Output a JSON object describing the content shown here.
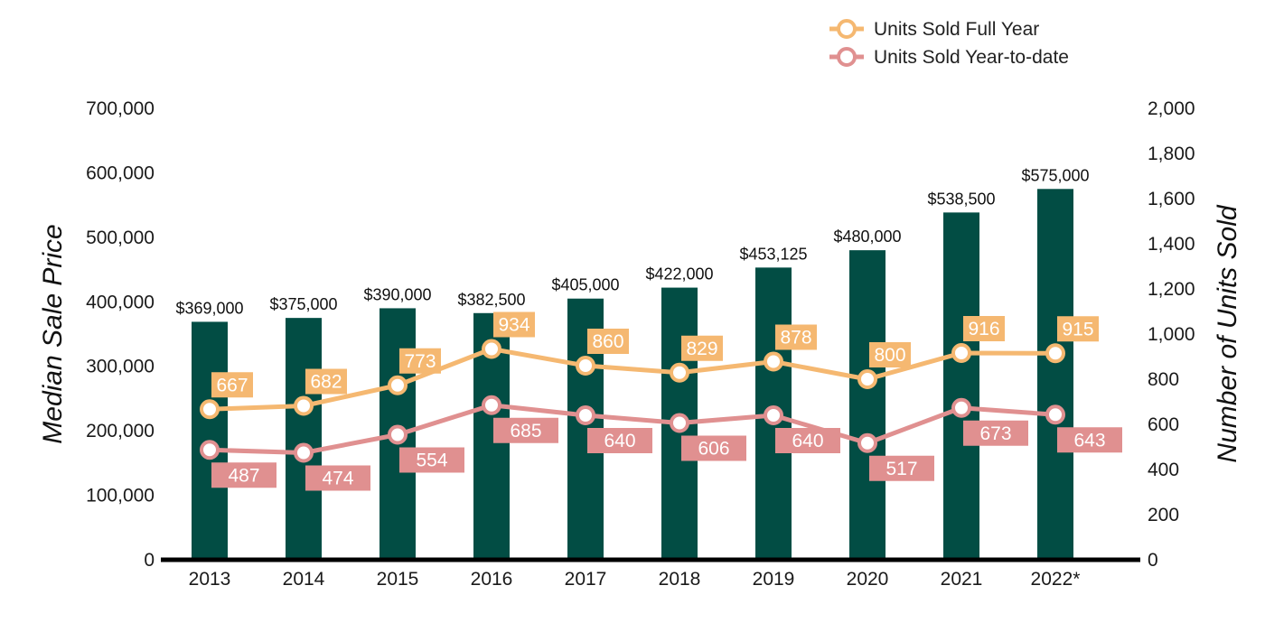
{
  "chart_data": {
    "type": "bar",
    "categories": [
      "2013",
      "2014",
      "2015",
      "2016",
      "2017",
      "2018",
      "2019",
      "2020",
      "2021",
      "2022*"
    ],
    "y_left": {
      "label": "Median Sale Price",
      "range": [
        0,
        700000
      ],
      "ticks": [
        "0",
        "100,000",
        "200,000",
        "300,000",
        "400,000",
        "500,000",
        "600,000",
        "700,000"
      ]
    },
    "y_right": {
      "label": "Number of Units Sold",
      "range": [
        0,
        2000
      ],
      "ticks": [
        "0",
        "200",
        "400",
        "600",
        "800",
        "1,000",
        "1,200",
        "1,400",
        "1,600",
        "1,800",
        "2,000"
      ]
    },
    "bars": {
      "values": [
        369000,
        375000,
        390000,
        382500,
        405000,
        422000,
        453125,
        480000,
        538500,
        575000
      ],
      "labels": [
        "$369,000",
        "$375,000",
        "$390,000",
        "$382,500",
        "$405,000",
        "$422,000",
        "$453,125",
        "$480,000",
        "$538,500",
        "$575,000"
      ],
      "color": "#024d44"
    },
    "series": [
      {
        "name": "Units Sold Full Year",
        "values": [
          667,
          682,
          773,
          934,
          860,
          829,
          878,
          800,
          916,
          915
        ],
        "labels": [
          "667",
          "682",
          "773",
          "934",
          "860",
          "829",
          "878",
          "800",
          "916",
          "915"
        ],
        "color": "#f5b871",
        "label_position": "above"
      },
      {
        "name": "Units Sold Year-to-date",
        "values": [
          487,
          474,
          554,
          685,
          640,
          606,
          640,
          517,
          673,
          643
        ],
        "labels": [
          "487",
          "474",
          "554",
          "685",
          "640",
          "606",
          "640",
          "517",
          "673",
          "643"
        ],
        "color": "#e09090",
        "label_position": "below"
      }
    ],
    "grid": false,
    "legend": "top-right"
  }
}
